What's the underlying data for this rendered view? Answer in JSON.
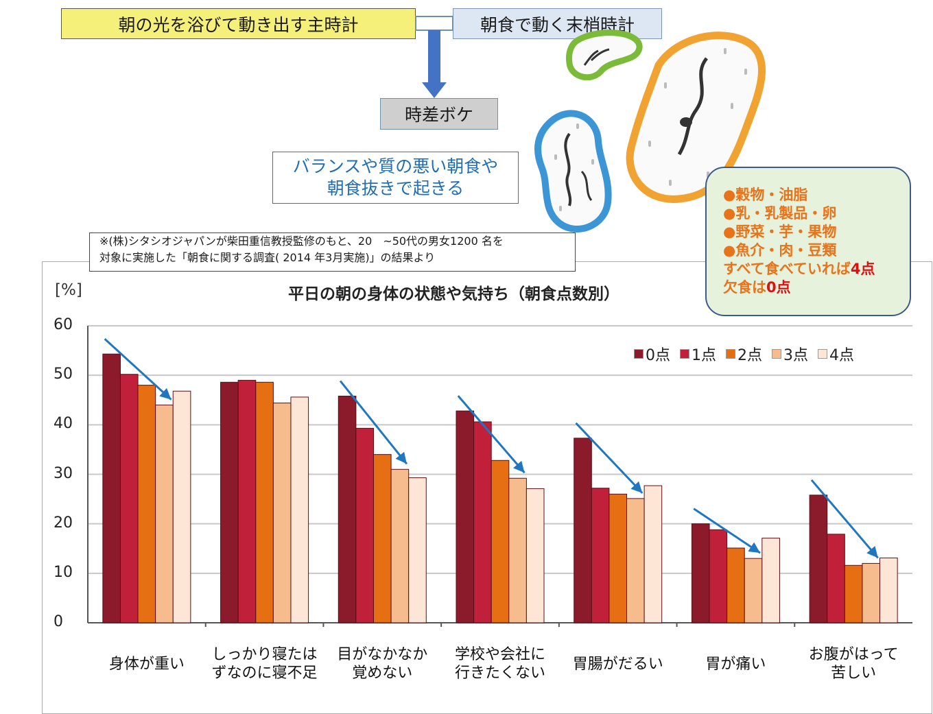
{
  "diagram": {
    "master_clock": "朝の光を浴びて動き出す主時計",
    "peripheral_clock": "朝食で動く末梢時計",
    "jetlag": "時差ボケ",
    "bad_breakfast_line1": "バランスや質の悪い朝食や",
    "bad_breakfast_line2": "朝食抜きで起きる"
  },
  "survey_note": {
    "line1": "※(株)シタシオジャパンが柴田重信教授監修のもと、20　~50代の男女1200 名を",
    "line2": "対象に実施した「朝食に関する調査(  2014 年3月実施)」の結果より"
  },
  "score_box": {
    "item1": "●穀物・油脂",
    "item2": "●乳・乳製品・卵",
    "item3": "●野菜・芋・果物",
    "item4": "●魚介・肉・豆類",
    "line5_text": "すべて食べていれば",
    "line5_score": "4点",
    "line6_text": "欠食は",
    "line6_score": "0点"
  },
  "colors": {
    "series": [
      "#8b1a2b",
      "#c0203a",
      "#e56f12",
      "#f7bc8e",
      "#fde6d6"
    ],
    "arrow": "#1f77c0",
    "grid": "#c8c8c8"
  },
  "chart_data": {
    "type": "bar",
    "title": "平日の朝の身体の状態や気持ち（朝食点数別）",
    "ylabel": "[%]",
    "ylim": [
      0,
      60
    ],
    "yticks": [
      "0",
      "10",
      "20",
      "30",
      "40",
      "50",
      "60"
    ],
    "grid": true,
    "legend_position": "top-right",
    "categories": [
      [
        "身体が重い"
      ],
      [
        "しっかり寝たは",
        "ずなのに寝不足"
      ],
      [
        "目がなかなか",
        "覚めない"
      ],
      [
        "学校や会社に",
        "行きたくない"
      ],
      [
        "胃腸がだるい"
      ],
      [
        "胃が痛い"
      ],
      [
        "お腹がはって",
        "苦しい"
      ]
    ],
    "series": [
      {
        "name": "0点",
        "values": [
          54.3,
          48.6,
          45.8,
          42.8,
          37.3,
          20.0,
          25.8
        ]
      },
      {
        "name": "1点",
        "values": [
          50.2,
          49.0,
          39.3,
          40.6,
          27.2,
          18.8,
          17.9
        ]
      },
      {
        "name": "2点",
        "values": [
          48.0,
          48.6,
          34.0,
          32.8,
          26.0,
          15.1,
          11.6
        ]
      },
      {
        "name": "3点",
        "values": [
          44.0,
          44.4,
          31.0,
          29.2,
          25.1,
          13.0,
          12.0
        ]
      },
      {
        "name": "4点",
        "values": [
          46.8,
          45.6,
          29.3,
          27.1,
          27.7,
          17.1,
          13.1
        ]
      }
    ]
  }
}
